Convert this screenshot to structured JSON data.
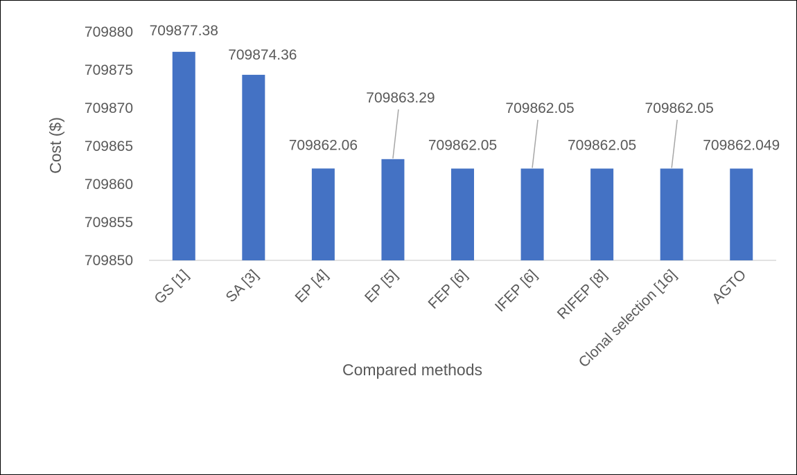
{
  "chart_data": {
    "type": "bar",
    "title": "",
    "xlabel": "Compared methods",
    "ylabel": "Cost ($)",
    "ylim": [
      709850,
      709880
    ],
    "yticks": [
      709850,
      709855,
      709860,
      709865,
      709870,
      709875,
      709880
    ],
    "grid": false,
    "legend": "none",
    "bar_color": "#4472C4",
    "categories": [
      "GS [1]",
      "SA [3]",
      "EP [4]",
      "EP [5]",
      "FEP [6]",
      "IFEP [6]",
      "RIFEP [8]",
      "Clonal selection  [16]",
      "AGTO"
    ],
    "values": [
      709877.38,
      709874.36,
      709862.06,
      709863.29,
      709862.05,
      709862.05,
      709862.05,
      709862.05,
      709862.049
    ],
    "data_labels": [
      "709877.38",
      "709874.36",
      "709862.06",
      "709863.29",
      "709862.05",
      "709862.05",
      "709862.05",
      "709862.05",
      "709862.049"
    ]
  }
}
